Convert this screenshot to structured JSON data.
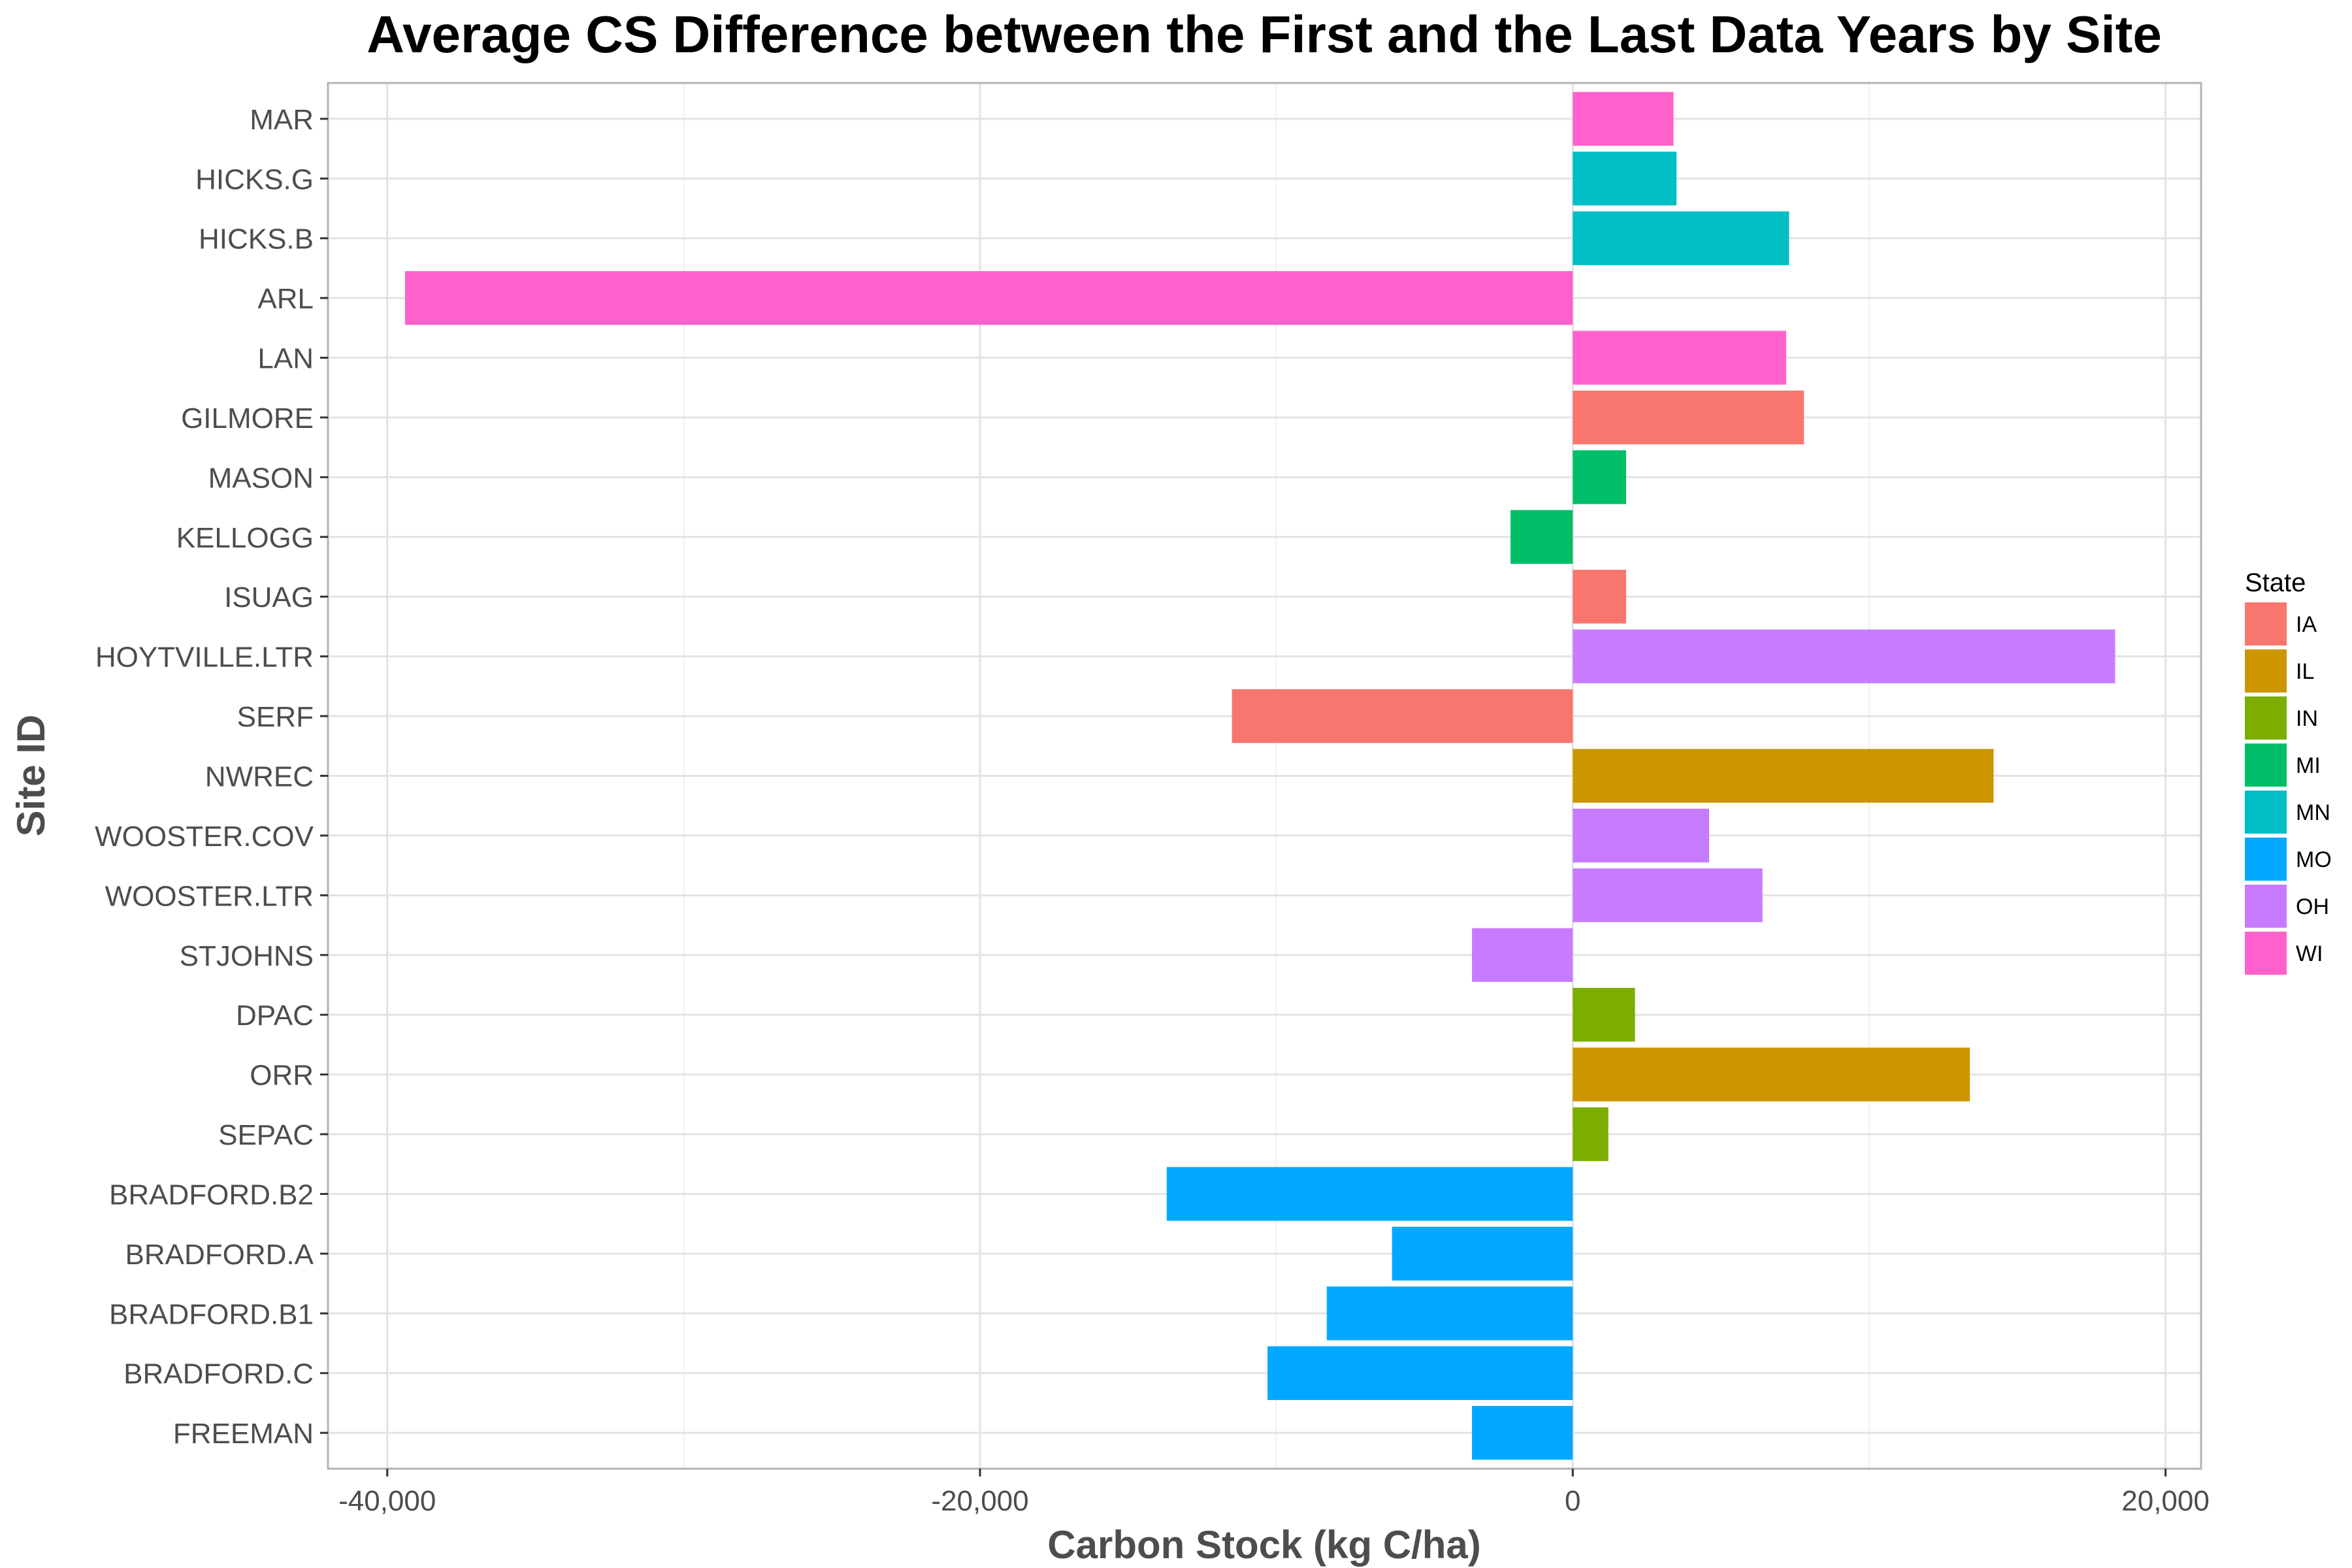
{
  "chart_data": {
    "type": "bar",
    "orientation": "horizontal",
    "title": "Average CS Difference between the First and the Last Data Years by Site",
    "xlabel": "Carbon Stock (kg C/ha)",
    "ylabel": "Site ID",
    "xlim": [
      -42000,
      21200
    ],
    "x_ticks": [
      -40000,
      -20000,
      0,
      20000
    ],
    "x_tick_labels": [
      "-40,000",
      "-20,000",
      "0",
      "20,000"
    ],
    "grid": true,
    "legend": {
      "title": "State",
      "position": "right",
      "entries": [
        {
          "label": "IA",
          "color": "#F8766D"
        },
        {
          "label": "IL",
          "color": "#CD9600"
        },
        {
          "label": "IN",
          "color": "#7CAE00"
        },
        {
          "label": "MI",
          "color": "#00BE67"
        },
        {
          "label": "MN",
          "color": "#00BFC4"
        },
        {
          "label": "MO",
          "color": "#00A9FF"
        },
        {
          "label": "OH",
          "color": "#C77CFF"
        },
        {
          "label": "WI",
          "color": "#FF61CC"
        }
      ]
    },
    "categories": [
      "MAR",
      "HICKS.G",
      "HICKS.B",
      "ARL",
      "LAN",
      "GILMORE",
      "MASON",
      "KELLOGG",
      "ISUAG",
      "HOYTVILLE.LTR",
      "SERF",
      "NWREC",
      "WOOSTER.COV",
      "WOOSTER.LTR",
      "STJOHNS",
      "DPAC",
      "ORR",
      "SEPAC",
      "BRADFORD.B2",
      "BRADFORD.A",
      "BRADFORD.B1",
      "BRADFORD.C",
      "FREEMAN"
    ],
    "values": [
      3400,
      3500,
      7300,
      -39400,
      7200,
      7800,
      1800,
      -2100,
      1800,
      18300,
      -11500,
      14200,
      4600,
      6400,
      -3400,
      2100,
      13400,
      1200,
      -13700,
      -6100,
      -8300,
      -10300,
      -3400
    ],
    "states": [
      "WI",
      "MN",
      "MN",
      "WI",
      "WI",
      "IA",
      "MI",
      "MI",
      "IA",
      "OH",
      "IA",
      "IL",
      "OH",
      "OH",
      "OH",
      "IN",
      "IL",
      "IN",
      "MO",
      "MO",
      "MO",
      "MO",
      "MO"
    ]
  }
}
